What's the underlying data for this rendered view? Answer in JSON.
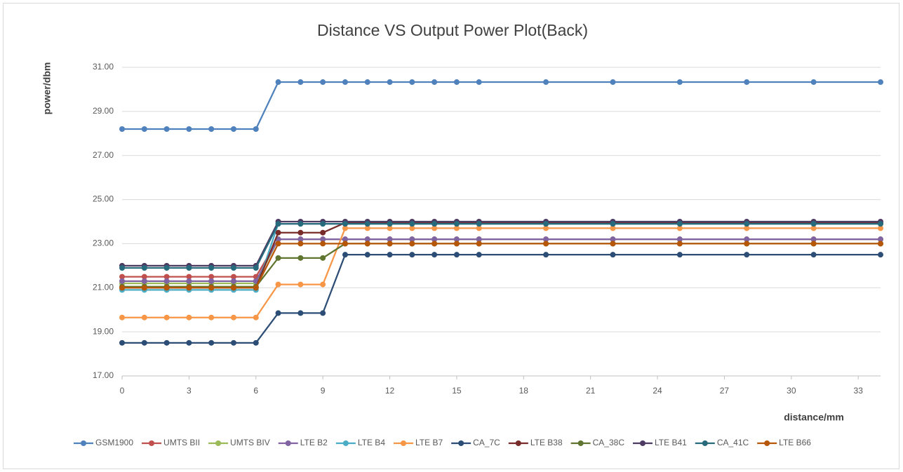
{
  "chart_data": {
    "type": "line",
    "title": "Distance VS Output Power Plot(Back)",
    "x_label": "distance/mm",
    "y_label": "power/dbm",
    "x": [
      0,
      1,
      2,
      3,
      4,
      5,
      6,
      7,
      8,
      9,
      10,
      11,
      12,
      13,
      14,
      15,
      16,
      19,
      22,
      25,
      28,
      31,
      34
    ],
    "xlim": [
      0,
      34
    ],
    "xticks": [
      0,
      3,
      6,
      9,
      12,
      15,
      18,
      21,
      24,
      27,
      30,
      33
    ],
    "ylim": [
      17,
      31
    ],
    "yticks": [
      {
        "value": 17,
        "label": "17.00"
      },
      {
        "value": 19,
        "label": "19.00"
      },
      {
        "value": 21,
        "label": "21.00"
      },
      {
        "value": 23,
        "label": "23.00"
      },
      {
        "value": 25,
        "label": "25.00"
      },
      {
        "value": 27,
        "label": "27.00"
      },
      {
        "value": 29,
        "label": "29.00"
      },
      {
        "value": 31,
        "label": "31.00"
      }
    ],
    "grid": true,
    "legend": "bottom",
    "series": [
      {
        "name": "GSM1900",
        "color": "#4f81bd",
        "values": [
          28.2,
          28.2,
          28.2,
          28.2,
          28.2,
          28.2,
          28.2,
          30.33,
          30.33,
          30.33,
          30.33,
          30.33,
          30.33,
          30.33,
          30.33,
          30.33,
          30.33,
          30.33,
          30.33,
          30.33,
          30.33,
          30.33,
          30.33
        ]
      },
      {
        "name": "UMTS BII",
        "color": "#c0504d",
        "values": [
          21.5,
          21.5,
          21.5,
          21.5,
          21.5,
          21.5,
          21.5,
          23.2,
          23.2,
          23.2,
          23.2,
          23.2,
          23.2,
          23.2,
          23.2,
          23.2,
          23.2,
          23.2,
          23.2,
          23.2,
          23.2,
          23.2,
          23.2
        ]
      },
      {
        "name": "UMTS BIV",
        "color": "#9bbb59",
        "values": [
          21.2,
          21.2,
          21.2,
          21.2,
          21.2,
          21.2,
          21.2,
          23.2,
          23.2,
          23.2,
          23.2,
          23.2,
          23.2,
          23.2,
          23.2,
          23.2,
          23.2,
          23.2,
          23.2,
          23.2,
          23.2,
          23.2,
          23.2
        ]
      },
      {
        "name": "LTE B2",
        "color": "#8064a2",
        "values": [
          21.3,
          21.3,
          21.3,
          21.3,
          21.3,
          21.3,
          21.3,
          23.2,
          23.2,
          23.2,
          23.2,
          23.2,
          23.2,
          23.2,
          23.2,
          23.2,
          23.2,
          23.2,
          23.2,
          23.2,
          23.2,
          23.2,
          23.2
        ]
      },
      {
        "name": "LTE B4",
        "color": "#4bacc6",
        "values": [
          20.9,
          20.9,
          20.9,
          20.9,
          20.9,
          20.9,
          20.9,
          23.9,
          23.9,
          23.9,
          23.9,
          23.9,
          23.9,
          23.9,
          23.9,
          23.9,
          23.9,
          23.9,
          23.9,
          23.9,
          23.9,
          23.9,
          23.9
        ]
      },
      {
        "name": "LTE B7",
        "color": "#f79646",
        "values": [
          19.65,
          19.65,
          19.65,
          19.65,
          19.65,
          19.65,
          19.65,
          21.15,
          21.15,
          21.15,
          23.7,
          23.7,
          23.7,
          23.7,
          23.7,
          23.7,
          23.7,
          23.7,
          23.7,
          23.7,
          23.7,
          23.7,
          23.7
        ]
      },
      {
        "name": "CA_7C",
        "color": "#2c4d75",
        "values": [
          18.5,
          18.5,
          18.5,
          18.5,
          18.5,
          18.5,
          18.5,
          19.85,
          19.85,
          19.85,
          22.5,
          22.5,
          22.5,
          22.5,
          22.5,
          22.5,
          22.5,
          22.5,
          22.5,
          22.5,
          22.5,
          22.5,
          22.5
        ]
      },
      {
        "name": "LTE B38",
        "color": "#772c2a",
        "values": [
          21.0,
          21.0,
          21.0,
          21.0,
          21.0,
          21.0,
          21.0,
          23.5,
          23.5,
          23.5,
          23.95,
          23.95,
          23.95,
          23.95,
          23.95,
          23.95,
          23.95,
          23.95,
          23.95,
          23.95,
          23.95,
          23.95,
          23.95
        ]
      },
      {
        "name": "CA_38C",
        "color": "#5f7530",
        "values": [
          21.05,
          21.05,
          21.05,
          21.05,
          21.05,
          21.05,
          21.05,
          22.35,
          22.35,
          22.35,
          23.0,
          23.0,
          23.0,
          23.0,
          23.0,
          23.0,
          23.0,
          23.0,
          23.0,
          23.0,
          23.0,
          23.0,
          23.0
        ]
      },
      {
        "name": "LTE B41",
        "color": "#4d3b62",
        "values": [
          22.0,
          22.0,
          22.0,
          22.0,
          22.0,
          22.0,
          22.0,
          24.0,
          24.0,
          24.0,
          24.0,
          24.0,
          24.0,
          24.0,
          24.0,
          24.0,
          24.0,
          24.0,
          24.0,
          24.0,
          24.0,
          24.0,
          24.0
        ]
      },
      {
        "name": "CA_41C",
        "color": "#276a7c",
        "values": [
          21.9,
          21.9,
          21.9,
          21.9,
          21.9,
          21.9,
          21.9,
          23.9,
          23.9,
          23.9,
          23.9,
          23.9,
          23.9,
          23.9,
          23.9,
          23.9,
          23.9,
          23.9,
          23.9,
          23.9,
          23.9,
          23.9,
          23.9
        ]
      },
      {
        "name": "LTE B66",
        "color": "#b65708",
        "values": [
          21.0,
          21.0,
          21.0,
          21.0,
          21.0,
          21.0,
          21.0,
          23.0,
          23.0,
          23.0,
          23.0,
          23.0,
          23.0,
          23.0,
          23.0,
          23.0,
          23.0,
          23.0,
          23.0,
          23.0,
          23.0,
          23.0,
          23.0
        ]
      }
    ]
  }
}
